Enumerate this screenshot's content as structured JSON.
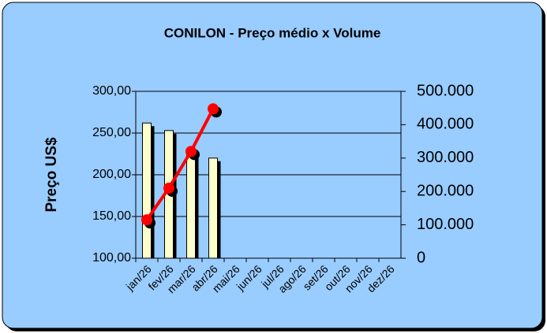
{
  "chart_data": {
    "type": "bar-line",
    "title": "CONILON - Preço médio x Volume",
    "y_label": "Preço US$",
    "categories": [
      "jan/26",
      "fev/26",
      "mar/26",
      "abr/26",
      "mai/26",
      "jun/26",
      "jul/26",
      "ago/26",
      "set/26",
      "out/26",
      "nov/26",
      "dez/26"
    ],
    "series": [
      {
        "type": "bar",
        "color": "#ffffcc",
        "values": [
          262,
          253,
          228,
          220,
          null,
          null,
          null,
          null,
          null,
          null,
          null,
          null
        ]
      },
      {
        "type": "line",
        "axis": "y2",
        "color": "#ff0000",
        "values": [
          115000,
          210000,
          320000,
          447500,
          null,
          null,
          null,
          null,
          null,
          null,
          null,
          null
        ]
      }
    ],
    "ylim": [
      100,
      300
    ],
    "yticks": [
      {
        "value": 100,
        "label": "100,00"
      },
      {
        "value": 150,
        "label": "150,00"
      },
      {
        "value": 200,
        "label": "200,00"
      },
      {
        "value": 250,
        "label": "250,00"
      },
      {
        "value": 300,
        "label": "300,00"
      }
    ],
    "y2lim": [
      0,
      500000
    ],
    "y2ticks": [
      0,
      {
        "value": 100000,
        "label": "100.000"
      },
      {
        "value": 200000,
        "label": "200.000"
      },
      {
        "value": 300000,
        "label": "300.000"
      },
      {
        "value": 400000,
        "label": "400.000"
      },
      {
        "value": 500000,
        "label": "500.000"
      }
    ],
    "grid": true
  }
}
